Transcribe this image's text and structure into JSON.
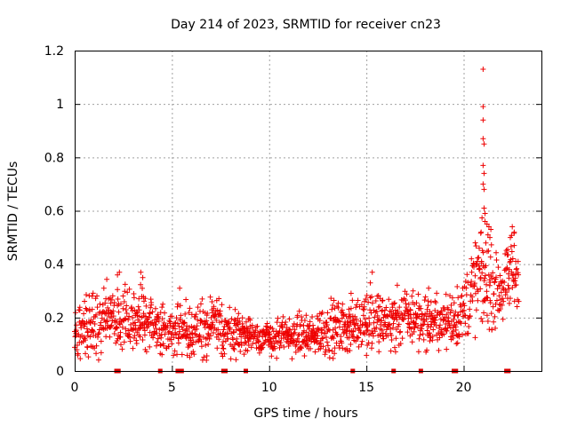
{
  "chart_data": {
    "type": "scatter",
    "title": "Day 214 of 2023, SRMTID for receiver cn23",
    "xlabel": "GPS time / hours",
    "ylabel": "SRMTID / TECUs",
    "xlim": [
      0,
      24
    ],
    "ylim": [
      0,
      1.2
    ],
    "xticks": [
      0,
      5,
      10,
      15,
      20
    ],
    "yticks": [
      0,
      0.2,
      0.4,
      0.6,
      0.8,
      1.0,
      1.2
    ],
    "xtick_labels": [
      "0",
      "5",
      "10",
      "15",
      "20"
    ],
    "ytick_labels": [
      "0",
      "0.2",
      "0.4",
      "0.6",
      "0.8",
      "1",
      "1.2"
    ],
    "grid": true,
    "marker": "+",
    "color": "#ee0000",
    "trend": [
      {
        "x": 0.0,
        "base": 0.15,
        "spread": 0.08
      },
      {
        "x": 1.0,
        "base": 0.2,
        "spread": 0.1
      },
      {
        "x": 2.0,
        "base": 0.18,
        "spread": 0.09
      },
      {
        "x": 3.0,
        "base": 0.2,
        "spread": 0.1
      },
      {
        "x": 4.0,
        "base": 0.17,
        "spread": 0.08
      },
      {
        "x": 5.0,
        "base": 0.15,
        "spread": 0.07
      },
      {
        "x": 6.0,
        "base": 0.15,
        "spread": 0.07
      },
      {
        "x": 7.0,
        "base": 0.17,
        "spread": 0.08
      },
      {
        "x": 8.0,
        "base": 0.15,
        "spread": 0.07
      },
      {
        "x": 9.0,
        "base": 0.14,
        "spread": 0.06
      },
      {
        "x": 10.0,
        "base": 0.12,
        "spread": 0.05
      },
      {
        "x": 11.0,
        "base": 0.13,
        "spread": 0.05
      },
      {
        "x": 12.0,
        "base": 0.13,
        "spread": 0.06
      },
      {
        "x": 13.0,
        "base": 0.16,
        "spread": 0.07
      },
      {
        "x": 14.0,
        "base": 0.17,
        "spread": 0.07
      },
      {
        "x": 15.0,
        "base": 0.19,
        "spread": 0.08
      },
      {
        "x": 16.0,
        "base": 0.18,
        "spread": 0.08
      },
      {
        "x": 17.0,
        "base": 0.2,
        "spread": 0.08
      },
      {
        "x": 18.0,
        "base": 0.19,
        "spread": 0.08
      },
      {
        "x": 19.0,
        "base": 0.18,
        "spread": 0.07
      },
      {
        "x": 20.0,
        "base": 0.22,
        "spread": 0.09
      },
      {
        "x": 20.5,
        "base": 0.3,
        "spread": 0.12
      },
      {
        "x": 21.0,
        "base": 0.35,
        "spread": 0.15
      },
      {
        "x": 21.5,
        "base": 0.3,
        "spread": 0.1
      },
      {
        "x": 22.0,
        "base": 0.3,
        "spread": 0.08
      },
      {
        "x": 22.5,
        "base": 0.38,
        "spread": 0.12
      },
      {
        "x": 22.8,
        "base": 0.33,
        "spread": 0.08
      }
    ],
    "highlights": [
      {
        "x": 2.2,
        "y": 0.36
      },
      {
        "x": 2.3,
        "y": 0.37
      },
      {
        "x": 3.4,
        "y": 0.37
      },
      {
        "x": 3.5,
        "y": 0.35
      },
      {
        "x": 5.4,
        "y": 0.31
      },
      {
        "x": 15.3,
        "y": 0.37
      },
      {
        "x": 15.2,
        "y": 0.33
      },
      {
        "x": 20.8,
        "y": 0.46
      },
      {
        "x": 20.9,
        "y": 0.52
      },
      {
        "x": 21.0,
        "y": 1.13
      },
      {
        "x": 21.0,
        "y": 0.99
      },
      {
        "x": 21.0,
        "y": 0.94
      },
      {
        "x": 21.0,
        "y": 0.87
      },
      {
        "x": 21.05,
        "y": 0.85
      },
      {
        "x": 21.0,
        "y": 0.77
      },
      {
        "x": 21.05,
        "y": 0.74
      },
      {
        "x": 21.0,
        "y": 0.7
      },
      {
        "x": 21.05,
        "y": 0.68
      },
      {
        "x": 21.05,
        "y": 0.61
      },
      {
        "x": 21.1,
        "y": 0.59
      },
      {
        "x": 21.1,
        "y": 0.56
      },
      {
        "x": 21.2,
        "y": 0.55
      },
      {
        "x": 21.3,
        "y": 0.54
      },
      {
        "x": 21.25,
        "y": 0.51
      },
      {
        "x": 21.4,
        "y": 0.53
      },
      {
        "x": 21.35,
        "y": 0.5
      },
      {
        "x": 22.5,
        "y": 0.54
      },
      {
        "x": 22.6,
        "y": 0.52
      },
      {
        "x": 22.4,
        "y": 0.5
      },
      {
        "x": 22.6,
        "y": 0.47
      },
      {
        "x": 20.6,
        "y": 0.48
      },
      {
        "x": 20.4,
        "y": 0.42
      },
      {
        "x": 20.7,
        "y": 0.41
      },
      {
        "x": 22.8,
        "y": 0.41
      },
      {
        "x": 22.7,
        "y": 0.38
      },
      {
        "x": 0.9,
        "y": 0.28
      },
      {
        "x": 1.5,
        "y": 0.31
      },
      {
        "x": 14.9,
        "y": 0.26
      },
      {
        "x": 17.4,
        "y": 0.3
      },
      {
        "x": 18.2,
        "y": 0.31
      }
    ],
    "gap_markers_x": [
      2.15,
      2.25,
      4.4,
      5.3,
      5.4,
      5.5,
      7.65,
      7.75,
      8.8,
      14.3,
      16.4,
      17.8,
      19.5,
      19.6,
      22.2,
      22.3
    ]
  }
}
